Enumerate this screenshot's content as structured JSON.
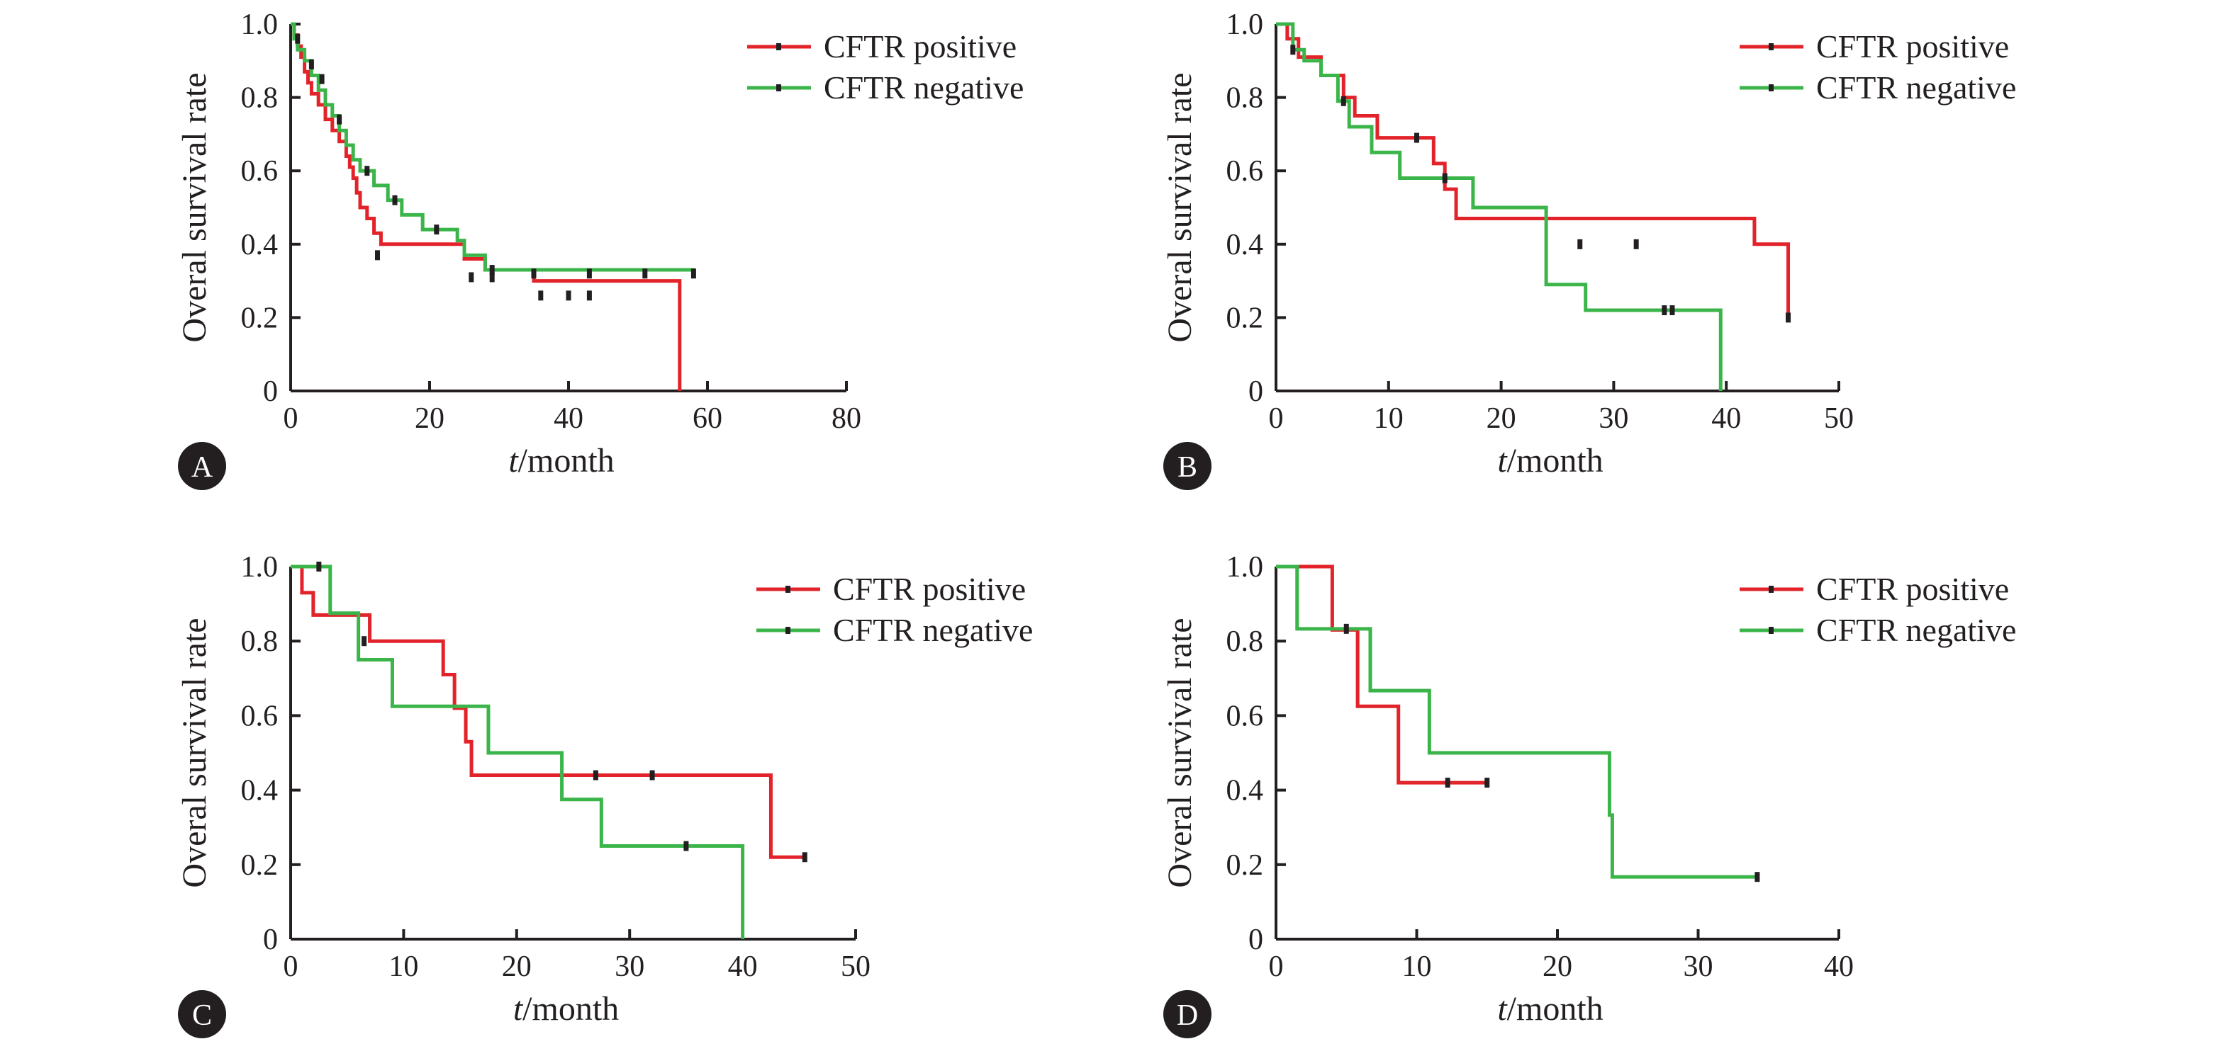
{
  "colors": {
    "cftr_positive": "#e2232a",
    "cftr_negative": "#3bb54a",
    "axis": "#231f20",
    "badge": "#231f20"
  },
  "chart_data": [
    {
      "panel": "A",
      "type": "line",
      "step": "post",
      "ylabel": "Overal survival rate",
      "xlabel_italic": "t",
      "xlabel_rest": "/month",
      "xlim": [
        0,
        80
      ],
      "ylim": [
        0,
        1.0
      ],
      "xticks": [
        0,
        20,
        40,
        60,
        80
      ],
      "yticks": [
        0,
        0.2,
        0.4,
        0.6,
        0.8,
        1.0
      ],
      "ytick_labels": [
        "0",
        "0.2",
        "0.4",
        "0.6",
        "0.8",
        "1.0"
      ],
      "legend_position": "top-right",
      "series": [
        {
          "name": "CFTR positive",
          "x": [
            0,
            0.5,
            1,
            1.5,
            2,
            2.5,
            3,
            4,
            5,
            6,
            7,
            8,
            8.5,
            9,
            9.5,
            10,
            11,
            12,
            13,
            25,
            28,
            35,
            56
          ],
          "y": [
            1.0,
            0.97,
            0.94,
            0.91,
            0.87,
            0.84,
            0.81,
            0.78,
            0.74,
            0.71,
            0.68,
            0.64,
            0.61,
            0.58,
            0.54,
            0.5,
            0.47,
            0.43,
            0.4,
            0.36,
            0.33,
            0.3,
            0.26
          ],
          "end": [
            56,
            0
          ],
          "censored": [
            [
              12.5,
              0.37
            ],
            [
              26,
              0.31
            ],
            [
              29,
              0.31
            ],
            [
              36,
              0.26
            ],
            [
              40,
              0.26
            ],
            [
              43,
              0.26
            ]
          ]
        },
        {
          "name": "CFTR negative",
          "x": [
            0,
            0.5,
            1,
            2,
            3,
            4,
            5,
            6,
            7,
            8,
            9,
            10,
            12,
            14,
            16,
            19,
            24,
            25,
            28
          ],
          "y": [
            1.0,
            0.96,
            0.93,
            0.9,
            0.86,
            0.82,
            0.78,
            0.75,
            0.71,
            0.67,
            0.63,
            0.6,
            0.56,
            0.52,
            0.48,
            0.44,
            0.41,
            0.37,
            0.33
          ],
          "end": [
            58,
            0.32
          ],
          "censored": [
            [
              1,
              0.96
            ],
            [
              3,
              0.89
            ],
            [
              4.5,
              0.85
            ],
            [
              7,
              0.74
            ],
            [
              11,
              0.6
            ],
            [
              15,
              0.52
            ],
            [
              21,
              0.44
            ],
            [
              29,
              0.33
            ],
            [
              35,
              0.32
            ],
            [
              43,
              0.32
            ],
            [
              51,
              0.32
            ],
            [
              58,
              0.32
            ]
          ]
        }
      ]
    },
    {
      "panel": "B",
      "type": "line",
      "step": "post",
      "ylabel": "Overal survival rate",
      "xlabel_italic": "t",
      "xlabel_rest": "/month",
      "xlim": [
        0,
        50
      ],
      "ylim": [
        0,
        1.0
      ],
      "xticks": [
        0,
        10,
        20,
        30,
        40,
        50
      ],
      "yticks": [
        0,
        0.2,
        0.4,
        0.6,
        0.8,
        1.0
      ],
      "ytick_labels": [
        "0",
        "0.2",
        "0.4",
        "0.6",
        "0.8",
        "1.0"
      ],
      "legend_position": "top-right",
      "series": [
        {
          "name": "CFTR positive",
          "x": [
            0,
            1,
            2,
            4,
            6,
            7,
            9,
            14,
            15,
            16,
            42.5
          ],
          "y": [
            1.0,
            0.96,
            0.91,
            0.86,
            0.8,
            0.75,
            0.69,
            0.62,
            0.55,
            0.47,
            0.4
          ],
          "end": [
            45.5,
            0.2
          ],
          "censored": [
            [
              12.5,
              0.69
            ],
            [
              27,
              0.4
            ],
            [
              32,
              0.4
            ],
            [
              45.5,
              0.2
            ]
          ]
        },
        {
          "name": "CFTR negative",
          "x": [
            0,
            1.5,
            2.5,
            4,
            5.5,
            6.5,
            8.5,
            11,
            17.5,
            24,
            24,
            27.5,
            39.5
          ],
          "y": [
            1.0,
            0.93,
            0.9,
            0.86,
            0.79,
            0.72,
            0.65,
            0.58,
            0.5,
            0.36,
            0.29,
            0.22,
            0.22
          ],
          "end": [
            39.5,
            0
          ],
          "censored": [
            [
              1.5,
              0.93
            ],
            [
              6,
              0.79
            ],
            [
              15,
              0.58
            ],
            [
              34.5,
              0.22
            ],
            [
              35.2,
              0.22
            ]
          ]
        }
      ]
    },
    {
      "panel": "C",
      "type": "line",
      "step": "post",
      "ylabel": "Overal survival rate",
      "xlabel_italic": "t",
      "xlabel_rest": "/month",
      "xlim": [
        0,
        50
      ],
      "ylim": [
        0,
        1.0
      ],
      "xticks": [
        0,
        10,
        20,
        30,
        40,
        50
      ],
      "yticks": [
        0,
        0.2,
        0.4,
        0.6,
        0.8,
        1.0
      ],
      "ytick_labels": [
        "0",
        "0.2",
        "0.4",
        "0.6",
        "0.8",
        "1.0"
      ],
      "legend_position": "top-right",
      "series": [
        {
          "name": "CFTR positive",
          "x": [
            0,
            1,
            2,
            7,
            13.5,
            14.5,
            15.5,
            16,
            42.5
          ],
          "y": [
            1.0,
            0.93,
            0.87,
            0.8,
            0.71,
            0.62,
            0.53,
            0.44,
            0.22
          ],
          "end": [
            45.5,
            0.22
          ],
          "censored": [
            [
              6.5,
              0.8
            ],
            [
              27,
              0.44
            ],
            [
              32,
              0.44
            ],
            [
              45.5,
              0.22
            ]
          ]
        },
        {
          "name": "CFTR negative",
          "x": [
            0,
            3.5,
            6,
            9,
            17.5,
            24,
            27.5,
            40
          ],
          "y": [
            1.0,
            0.875,
            0.75,
            0.625,
            0.5,
            0.375,
            0.25,
            0.25
          ],
          "end": [
            40,
            0
          ],
          "censored": [
            [
              2.5,
              1.0
            ],
            [
              35,
              0.25
            ]
          ]
        }
      ]
    },
    {
      "panel": "D",
      "type": "line",
      "step": "post",
      "ylabel": "Overal survival rate",
      "xlabel_italic": "t",
      "xlabel_rest": "/month",
      "xlim": [
        0,
        40
      ],
      "ylim": [
        0,
        1.0
      ],
      "xticks": [
        0,
        10,
        20,
        30,
        40
      ],
      "yticks": [
        0,
        0.2,
        0.4,
        0.6,
        0.8,
        1.0
      ],
      "ytick_labels": [
        "0",
        "0.2",
        "0.4",
        "0.6",
        "0.8",
        "1.0"
      ],
      "legend_position": "top-right",
      "series": [
        {
          "name": "CFTR positive",
          "x": [
            0,
            4,
            5.8,
            8.7
          ],
          "y": [
            1.0,
            0.83,
            0.625,
            0.42
          ],
          "end": [
            15,
            0.42
          ],
          "censored": [
            [
              12.2,
              0.42
            ],
            [
              15,
              0.42
            ]
          ]
        },
        {
          "name": "CFTR negative",
          "x": [
            0,
            1.5,
            6.7,
            10.9,
            23.7,
            23.9
          ],
          "y": [
            1.0,
            0.833,
            0.667,
            0.5,
            0.333,
            0.167
          ],
          "end": [
            34.2,
            0.167
          ],
          "censored": [
            [
              5,
              0.833
            ],
            [
              34.2,
              0.167
            ]
          ]
        }
      ]
    }
  ]
}
